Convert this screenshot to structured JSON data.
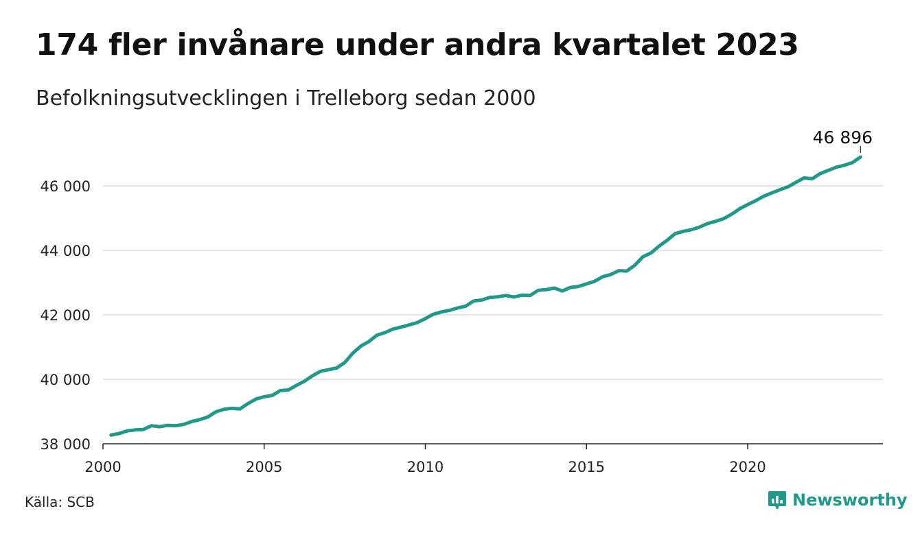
{
  "header": {
    "title": "174 fler invånare under andra kvartalet 2023",
    "subtitle": "Befolkningsutvecklingen i Trelleborg sedan 2000"
  },
  "footer": {
    "source": "Källa: SCB",
    "brand": "Newsworthy",
    "brand_icon": "newsworthy-logo-icon",
    "brand_color": "#1f9a8a"
  },
  "chart_data": {
    "type": "line",
    "title": "174 fler invånare under andra kvartalet 2023",
    "subtitle": "Befolkningsutvecklingen i Trelleborg sedan 2000",
    "xlabel": "",
    "ylabel": "",
    "xlim": [
      2000,
      2023.5
    ],
    "ylim": [
      38000,
      47000
    ],
    "x_ticks": [
      2000,
      2005,
      2010,
      2015,
      2020
    ],
    "x_tick_labels": [
      "2000",
      "2005",
      "2010",
      "2015",
      "2020"
    ],
    "y_ticks": [
      38000,
      40000,
      42000,
      44000,
      46000
    ],
    "y_tick_labels": [
      "38 000",
      "40 000",
      "42 000",
      "44 000",
      "46 000"
    ],
    "grid": "horizontal",
    "line_color": "#1f9a8a",
    "end_label": "46 896",
    "series": [
      {
        "x": [
          2000.25,
          2000.5,
          2000.75,
          2001,
          2001.25,
          2001.5,
          2001.75,
          2002,
          2002.25,
          2002.5,
          2002.75,
          2003,
          2003.25,
          2003.5,
          2003.75,
          2004,
          2004.25,
          2004.5,
          2004.75,
          2005,
          2005.25,
          2005.5,
          2005.75,
          2006,
          2006.25,
          2006.5,
          2006.75,
          2007,
          2007.25,
          2007.5,
          2007.75,
          2008,
          2008.25,
          2008.5,
          2008.75,
          2009,
          2009.25,
          2009.5,
          2009.75,
          2010,
          2010.25,
          2010.5,
          2010.75,
          2011,
          2011.25,
          2011.5,
          2011.75,
          2012,
          2012.25,
          2012.5,
          2012.75,
          2013,
          2013.25,
          2013.5,
          2013.75,
          2014,
          2014.25,
          2014.5,
          2014.75,
          2015,
          2015.25,
          2015.5,
          2015.75,
          2016,
          2016.25,
          2016.5,
          2016.75,
          2017,
          2017.25,
          2017.5,
          2017.75,
          2018,
          2018.25,
          2018.5,
          2018.75,
          2019,
          2019.25,
          2019.5,
          2019.75,
          2020,
          2020.25,
          2020.5,
          2020.75,
          2021,
          2021.25,
          2021.5,
          2021.75,
          2022,
          2022.25,
          2022.5,
          2022.75,
          2023,
          2023.25,
          2023.5
        ],
        "values": [
          38270,
          38320,
          38400,
          38430,
          38440,
          38560,
          38530,
          38570,
          38560,
          38600,
          38690,
          38750,
          38830,
          38990,
          39070,
          39100,
          39080,
          39250,
          39390,
          39460,
          39500,
          39650,
          39670,
          39810,
          39940,
          40110,
          40250,
          40300,
          40350,
          40520,
          40810,
          41030,
          41170,
          41370,
          41450,
          41560,
          41620,
          41690,
          41760,
          41880,
          42020,
          42090,
          42140,
          42210,
          42270,
          42430,
          42460,
          42540,
          42560,
          42600,
          42550,
          42610,
          42600,
          42760,
          42780,
          42830,
          42740,
          42850,
          42880,
          42960,
          43040,
          43180,
          43250,
          43370,
          43360,
          43540,
          43800,
          43920,
          44130,
          44310,
          44520,
          44590,
          44640,
          44720,
          44830,
          44900,
          44980,
          45120,
          45290,
          45420,
          45540,
          45680,
          45780,
          45880,
          45970,
          46110,
          46250,
          46220,
          46380,
          46480,
          46580,
          46640,
          46722,
          46896
        ]
      }
    ]
  }
}
